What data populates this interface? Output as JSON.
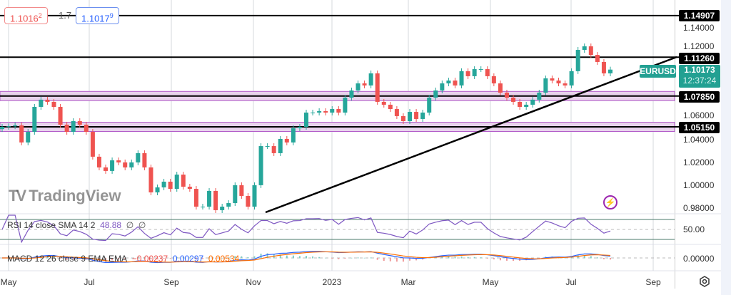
{
  "chart_data": {
    "type": "candlestick",
    "symbol": "EURUSD",
    "x_range": [
      "2022-04-25",
      "2023-07-18"
    ],
    "closes": [
      1.0515,
      1.052,
      1.0528,
      1.0378,
      1.0471,
      1.069,
      1.0753,
      1.0734,
      1.069,
      1.0534,
      1.0471,
      1.0565,
      1.0534,
      1.0471,
      1.0253,
      1.0159,
      1.0128,
      1.0221,
      1.0203,
      1.0159,
      1.0203,
      1.0284,
      1.0159,
      0.994,
      0.9984,
      1.0034,
      0.9971,
      1.0096,
      0.999,
      0.9971,
      0.9815,
      0.9815,
      0.9953,
      0.9784,
      0.9815,
      0.9846,
      1.0003,
      0.9909,
      0.9815,
      1.0003,
      1.0346,
      1.0346,
      1.0284,
      1.0409,
      1.0378,
      1.0503,
      1.0515,
      1.064,
      1.064,
      1.0653,
      1.064,
      1.0671,
      1.064,
      1.0771,
      1.0834,
      1.0896,
      1.0878,
      1.0984,
      1.0734,
      1.0709,
      1.0671,
      1.0609,
      1.0565,
      1.0646,
      1.0584,
      1.064,
      1.0771,
      1.0834,
      1.0896,
      1.0921,
      1.0878,
      1.1003,
      1.0959,
      1.1021,
      1.1021,
      1.0959,
      1.0896,
      1.0815,
      1.0771,
      1.0734,
      1.069,
      1.0709,
      1.0753,
      1.0815,
      1.094,
      1.0921,
      1.0896,
      1.0878,
      1.1003,
      1.119,
      1.1221,
      1.1146,
      1.1084,
      1.0984,
      1.1017
    ],
    "yaxis": {
      "ticks": [
        "1.14000",
        "1.12000",
        "1.06000",
        "1.04000",
        "1.02000",
        "1.00000",
        "0.98000"
      ],
      "range": [
        0.975,
        1.16
      ]
    },
    "xaxis": {
      "ticks": [
        "May",
        "Jul",
        "Sep",
        "Nov",
        "2023",
        "Mar",
        "May",
        "Jul",
        "Sep"
      ]
    },
    "horizontal_levels": [
      {
        "price": "1.14907",
        "band": false
      },
      {
        "price": "1.11260",
        "band": false
      },
      {
        "price": "1.07850",
        "band": true
      },
      {
        "price": "1.05150",
        "band": true
      }
    ],
    "trendline": {
      "from": [
        "2022-11-08",
        0.976
      ],
      "to": [
        "2023-09-10",
        1.1126
      ]
    },
    "current": {
      "symbol": "EURUSD",
      "price": "1.10173",
      "countdown": "12:37:24"
    },
    "colors": {
      "up": "#26a69a",
      "down": "#ef5350",
      "band": "#e8d3ec",
      "band_edge": "#b25cc9",
      "rsi": "#7e57c2",
      "macd": "#2962ff",
      "signal": "#ff6d00",
      "current": "#22a092"
    }
  },
  "header": {
    "sell_price": "1.1016",
    "sell_sup": "2",
    "spread": "1.7",
    "buy_price": "1.1017",
    "buy_sup": "9"
  },
  "rsi": {
    "label": "RSI 14 close SMA 14 2",
    "value": "48.88",
    "extra1": "∅",
    "extra2": "∅",
    "axis_label": "50.00"
  },
  "macd": {
    "label": "MACD 12 26 close 9 EMA EMA",
    "hist": "−0.00237",
    "macd": "0.00297",
    "signal": "0.00534",
    "axis_label": "0.00000"
  },
  "watermark": "TradingView"
}
